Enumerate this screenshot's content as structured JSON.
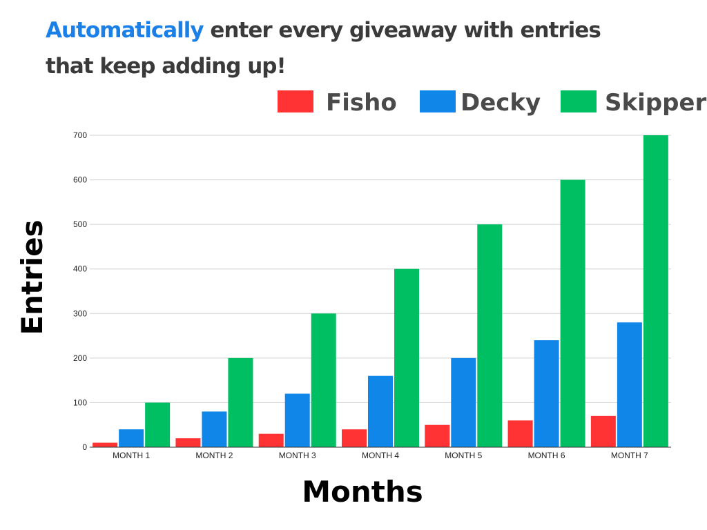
{
  "headline": {
    "accent": "Automatically",
    "rest": " enter every giveaway with entries that keep adding up!"
  },
  "colors": {
    "accent": "#1a7fe6",
    "fisho": "#ff3333",
    "decky": "#0f86e8",
    "skipper": "#00bf63"
  },
  "chart_data": {
    "type": "bar",
    "xlabel": "Months",
    "ylabel": "Entries",
    "ylim": [
      0,
      700
    ],
    "yticks": [
      0,
      100,
      200,
      300,
      400,
      500,
      600,
      700
    ],
    "grid": true,
    "legend_position": "top-right",
    "categories": [
      "MONTH 1",
      "MONTH 2",
      "MONTH 3",
      "MONTH 4",
      "MONTH 5",
      "MONTH 6",
      "MONTH 7"
    ],
    "series": [
      {
        "name": "Fisho",
        "color": "#ff3333",
        "values": [
          10,
          20,
          30,
          40,
          50,
          60,
          70
        ]
      },
      {
        "name": "Decky",
        "color": "#0f86e8",
        "values": [
          40,
          80,
          120,
          160,
          200,
          240,
          280
        ]
      },
      {
        "name": "Skipper",
        "color": "#00bf63",
        "values": [
          100,
          200,
          300,
          400,
          500,
          600,
          700
        ]
      }
    ]
  }
}
